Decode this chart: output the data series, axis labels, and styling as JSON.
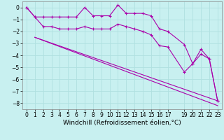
{
  "xlabel": "Windchill (Refroidissement éolien,°C)",
  "bg_color": "#c8f0f0",
  "grid_color": "#b0e0e0",
  "line_color": "#aa00aa",
  "ylim": [
    -8.5,
    0.5
  ],
  "xlim": [
    -0.5,
    23.5
  ],
  "yticks": [
    0,
    -1,
    -2,
    -3,
    -4,
    -5,
    -6,
    -7,
    -8
  ],
  "xticks": [
    0,
    1,
    2,
    3,
    4,
    5,
    6,
    7,
    8,
    9,
    10,
    11,
    12,
    13,
    14,
    15,
    16,
    17,
    19,
    20,
    21,
    22,
    23
  ],
  "line1_x": [
    0,
    1,
    2,
    3,
    4,
    5,
    6,
    7,
    8,
    9,
    10,
    11,
    12,
    13,
    14,
    15,
    16,
    17,
    19,
    20,
    21,
    22,
    23
  ],
  "line1_y": [
    0.0,
    -0.8,
    -0.8,
    -0.8,
    -0.8,
    -0.8,
    -0.8,
    0.0,
    -0.7,
    -0.7,
    -0.7,
    0.2,
    -0.5,
    -0.5,
    -0.5,
    -0.7,
    -1.8,
    -2.0,
    -3.1,
    -4.7,
    -3.9,
    -4.3,
    -7.8
  ],
  "line2_x": [
    0,
    1,
    2,
    3,
    4,
    5,
    6,
    7,
    8,
    9,
    10,
    11,
    12,
    13,
    14,
    15,
    16,
    17,
    19,
    20,
    21,
    22,
    23
  ],
  "line2_y": [
    0.0,
    -0.8,
    -1.6,
    -1.6,
    -1.8,
    -1.8,
    -1.8,
    -1.6,
    -1.8,
    -1.8,
    -1.8,
    -1.4,
    -1.6,
    -1.8,
    -2.0,
    -2.3,
    -3.2,
    -3.3,
    -5.4,
    -4.7,
    -3.5,
    -4.3,
    -7.8
  ],
  "line3_x": [
    1,
    23
  ],
  "line3_y": [
    -2.5,
    -7.8
  ],
  "line4_x": [
    1,
    23
  ],
  "line4_y": [
    -2.5,
    -8.2
  ],
  "markersize": 3,
  "linewidth": 0.8,
  "xlabel_fontsize": 6.5,
  "tick_fontsize": 5.5
}
